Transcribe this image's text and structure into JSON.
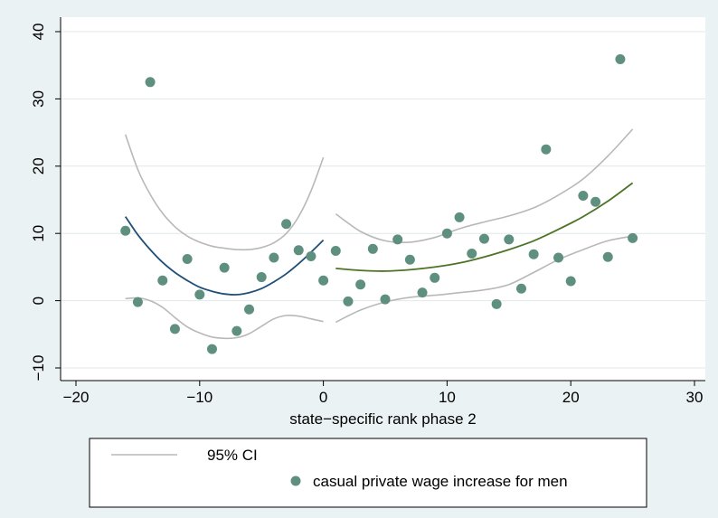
{
  "chart_data": {
    "type": "scatter",
    "xlabel": "state−specific rank phase 2",
    "ylabel": "",
    "xlim": [
      -20,
      30
    ],
    "ylim": [
      -10,
      40
    ],
    "x_ticks": [
      "−20",
      "−10",
      "0",
      "10",
      "20",
      "30"
    ],
    "y_ticks": [
      "−10",
      "0",
      "10",
      "20",
      "30",
      "40"
    ],
    "grid": "horizontal",
    "legend_position": "bottom",
    "legend": {
      "ci_label": "95% CI",
      "scatter_label": "casual private wage increase for men"
    },
    "colors": {
      "background": "#eaf2f3",
      "plot_bg": "#ffffff",
      "scatter": "#5f8f7f",
      "fit_left": "#1f4e79",
      "fit_right": "#4d7327",
      "ci": "#b8b8b8",
      "grid": "#e1e8ea"
    },
    "scatter": {
      "name": "casual private wage increase for men",
      "points": [
        [
          -16,
          10.4
        ],
        [
          -15,
          -0.2
        ],
        [
          -14,
          32.5
        ],
        [
          -13,
          3.0
        ],
        [
          -12,
          -4.2
        ],
        [
          -11,
          6.2
        ],
        [
          -10,
          0.9
        ],
        [
          -9,
          -7.2
        ],
        [
          -8,
          4.9
        ],
        [
          -7,
          -4.5
        ],
        [
          -6,
          -1.3
        ],
        [
          -5,
          3.5
        ],
        [
          -4,
          6.4
        ],
        [
          -3,
          11.4
        ],
        [
          -2,
          7.5
        ],
        [
          -1,
          6.6
        ],
        [
          0,
          3.0
        ],
        [
          1,
          7.4
        ],
        [
          2,
          -0.1
        ],
        [
          3,
          2.4
        ],
        [
          4,
          7.7
        ],
        [
          5,
          0.2
        ],
        [
          6,
          9.1
        ],
        [
          7,
          6.1
        ],
        [
          8,
          1.2
        ],
        [
          9,
          3.4
        ],
        [
          10,
          10.0
        ],
        [
          11,
          12.4
        ],
        [
          12,
          7.0
        ],
        [
          13,
          9.2
        ],
        [
          14,
          -0.5
        ],
        [
          15,
          9.1
        ],
        [
          16,
          1.8
        ],
        [
          17,
          6.9
        ],
        [
          18,
          22.5
        ],
        [
          19,
          6.4
        ],
        [
          20,
          2.9
        ],
        [
          21,
          15.6
        ],
        [
          22,
          14.7
        ],
        [
          23,
          6.5
        ],
        [
          24,
          35.9
        ],
        [
          25,
          9.3
        ]
      ]
    },
    "fit_left": {
      "x": [
        -16,
        -15,
        -14,
        -13,
        -12,
        -11,
        -10,
        -9,
        -8,
        -7,
        -6,
        -5,
        -4,
        -3,
        -2,
        -1,
        0
      ],
      "y": [
        12.5,
        9.8,
        7.6,
        5.7,
        4.2,
        3.0,
        2.0,
        1.4,
        1.0,
        0.9,
        1.2,
        1.8,
        2.8,
        4.0,
        5.5,
        7.2,
        9.0
      ]
    },
    "ci_left_upper": {
      "x": [
        -16,
        -15,
        -14,
        -13,
        -12,
        -11,
        -10,
        -9,
        -8,
        -7,
        -6,
        -5,
        -4,
        -3,
        -2,
        -1,
        0
      ],
      "y": [
        24.7,
        19.5,
        15.8,
        13.0,
        11.0,
        9.6,
        8.7,
        8.1,
        7.8,
        7.6,
        7.6,
        7.9,
        8.6,
        10.0,
        12.5,
        16.3,
        21.3
      ]
    },
    "ci_left_lower": {
      "x": [
        -16,
        -15,
        -14,
        -13,
        -12,
        -11,
        -10,
        -9,
        -8,
        -7,
        -6,
        -5,
        -4,
        -3,
        -2,
        -1,
        0
      ],
      "y": [
        0.3,
        0.4,
        0.0,
        -1.0,
        -2.5,
        -3.9,
        -4.8,
        -5.4,
        -5.6,
        -5.5,
        -4.9,
        -3.8,
        -2.7,
        -2.2,
        -2.3,
        -2.7,
        -3.1
      ]
    },
    "fit_right": {
      "x": [
        1,
        3,
        5,
        7,
        9,
        11,
        13,
        15,
        17,
        19,
        21,
        23,
        25
      ],
      "y": [
        4.8,
        4.5,
        4.4,
        4.6,
        5.0,
        5.6,
        6.5,
        7.6,
        8.9,
        10.6,
        12.5,
        14.8,
        17.5
      ]
    },
    "ci_right_upper": {
      "x": [
        1,
        3,
        5,
        7,
        9,
        11,
        13,
        15,
        17,
        19,
        21,
        23,
        25
      ],
      "y": [
        12.9,
        10.3,
        8.9,
        8.7,
        9.4,
        10.7,
        11.7,
        12.6,
        13.8,
        15.7,
        18.1,
        21.5,
        25.5
      ]
    },
    "ci_right_lower": {
      "x": [
        1,
        3,
        5,
        7,
        9,
        11,
        13,
        15,
        17,
        19,
        21,
        23,
        25
      ],
      "y": [
        -3.2,
        -1.4,
        -0.2,
        0.5,
        0.8,
        1.2,
        1.6,
        2.4,
        4.2,
        6.1,
        7.6,
        8.9,
        9.6
      ]
    }
  }
}
